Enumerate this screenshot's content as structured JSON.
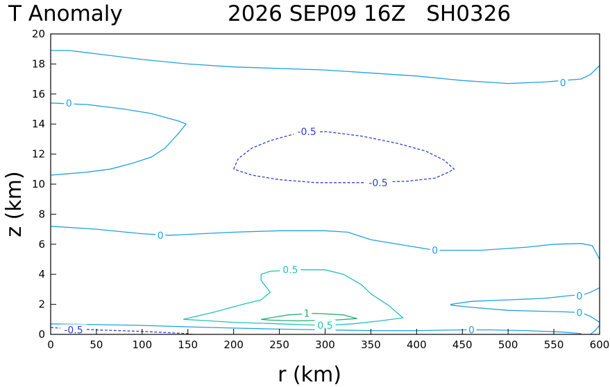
{
  "chart_data": {
    "type": "contour",
    "title_left": "T Anomaly",
    "title_right": "2026 SEP09 16Z   SH0326",
    "xlabel": "r (km)",
    "ylabel": "z (km)",
    "xlim": [
      0,
      600
    ],
    "ylim": [
      0,
      20
    ],
    "x_ticks": [
      "0",
      "50",
      "100",
      "150",
      "200",
      "250",
      "300",
      "350",
      "400",
      "450",
      "500",
      "550",
      "600"
    ],
    "y_ticks": [
      "0",
      "2",
      "4",
      "6",
      "8",
      "10",
      "12",
      "14",
      "16",
      "18",
      "20"
    ],
    "colors": {
      "zero": "#1f9fe6",
      "negative": "#2a3fd6",
      "positive_half": "#22c2b8",
      "positive_one": "#22b070"
    },
    "contours": [
      {
        "level": 0,
        "kind": "zero",
        "dashed": false,
        "points": [
          [
            0,
            18.9
          ],
          [
            20,
            18.9
          ],
          [
            60,
            18.6
          ],
          [
            100,
            18.3
          ],
          [
            150,
            18.0
          ],
          [
            200,
            17.8
          ],
          [
            300,
            17.6
          ],
          [
            400,
            17.2
          ],
          [
            450,
            16.9
          ],
          [
            500,
            16.7
          ],
          [
            540,
            16.8
          ],
          [
            560,
            16.9
          ],
          [
            580,
            17.0
          ],
          [
            590,
            17.3
          ],
          [
            600,
            17.9
          ]
        ]
      },
      {
        "level": 0,
        "kind": "zero",
        "dashed": false,
        "points": [
          [
            0,
            15.4
          ],
          [
            40,
            15.3
          ],
          [
            80,
            15.0
          ],
          [
            110,
            14.7
          ],
          [
            140,
            14.2
          ],
          [
            148,
            14.0
          ],
          [
            140,
            13.4
          ],
          [
            125,
            12.4
          ],
          [
            110,
            11.8
          ],
          [
            90,
            11.4
          ],
          [
            65,
            11.0
          ],
          [
            40,
            10.8
          ],
          [
            20,
            10.7
          ],
          [
            0,
            10.6
          ]
        ]
      },
      {
        "level": 0,
        "kind": "zero",
        "dashed": false,
        "points": [
          [
            0,
            7.2
          ],
          [
            50,
            7.0
          ],
          [
            100,
            6.7
          ],
          [
            130,
            6.6
          ],
          [
            200,
            6.8
          ],
          [
            250,
            6.9
          ],
          [
            300,
            6.9
          ],
          [
            325,
            6.8
          ],
          [
            350,
            6.3
          ],
          [
            400,
            5.8
          ],
          [
            420,
            5.6
          ],
          [
            470,
            5.6
          ],
          [
            520,
            5.8
          ],
          [
            550,
            6.0
          ],
          [
            580,
            6.05
          ],
          [
            592,
            5.9
          ],
          [
            600,
            5.0
          ]
        ]
      },
      {
        "level": 0,
        "kind": "zero",
        "dashed": false,
        "points": [
          [
            437,
            2.0
          ],
          [
            460,
            2.2
          ],
          [
            500,
            2.3
          ],
          [
            540,
            2.4
          ],
          [
            570,
            2.6
          ],
          [
            580,
            2.6
          ],
          [
            590,
            2.8
          ],
          [
            600,
            3.1
          ]
        ]
      },
      {
        "level": 0,
        "kind": "zero",
        "dashed": false,
        "points": [
          [
            437,
            1.95
          ],
          [
            460,
            1.8
          ],
          [
            500,
            1.6
          ],
          [
            530,
            1.55
          ],
          [
            560,
            1.5
          ],
          [
            580,
            1.45
          ],
          [
            590,
            1.2
          ],
          [
            600,
            0.8
          ]
        ]
      },
      {
        "level": 0,
        "kind": "zero",
        "dashed": false,
        "points": [
          [
            0,
            0.7
          ],
          [
            50,
            0.65
          ],
          [
            100,
            0.6
          ],
          [
            150,
            0.5
          ],
          [
            200,
            0.42
          ],
          [
            250,
            0.35
          ],
          [
            300,
            0.3
          ],
          [
            350,
            0.25
          ],
          [
            400,
            0.25
          ],
          [
            450,
            0.3
          ],
          [
            480,
            0.3
          ],
          [
            520,
            0.25
          ],
          [
            560,
            0.15
          ],
          [
            580,
            0.05
          ]
        ]
      },
      {
        "level": 0,
        "kind": "zero",
        "dashed": false,
        "points": [
          [
            590,
            0.0
          ],
          [
            595,
            0.25
          ],
          [
            600,
            0.6
          ]
        ]
      },
      {
        "level": -0.5,
        "kind": "negative",
        "dashed": true,
        "points": [
          [
            200,
            11.0
          ],
          [
            205,
            11.7
          ],
          [
            220,
            12.4
          ],
          [
            240,
            12.9
          ],
          [
            270,
            13.4
          ],
          [
            300,
            13.5
          ],
          [
            340,
            13.2
          ],
          [
            380,
            12.7
          ],
          [
            410,
            12.2
          ],
          [
            430,
            11.6
          ],
          [
            441,
            11.0
          ],
          [
            435,
            10.8
          ],
          [
            420,
            10.4
          ],
          [
            390,
            10.2
          ],
          [
            340,
            10.1
          ],
          [
            290,
            10.1
          ],
          [
            250,
            10.3
          ],
          [
            220,
            10.6
          ],
          [
            200,
            11.0
          ]
        ]
      },
      {
        "level": -0.5,
        "kind": "negative",
        "dashed": true,
        "points": [
          [
            0,
            0.45
          ],
          [
            50,
            0.3
          ],
          [
            100,
            0.2
          ],
          [
            150,
            0.05
          ],
          [
            155,
            0.0
          ]
        ]
      },
      {
        "level": 0.5,
        "kind": "positive_half",
        "dashed": false,
        "points": [
          [
            145,
            1.0
          ],
          [
            180,
            1.5
          ],
          [
            210,
            2.0
          ],
          [
            230,
            2.3
          ],
          [
            240,
            2.8
          ],
          [
            230,
            3.6
          ],
          [
            230,
            4.0
          ],
          [
            240,
            4.2
          ],
          [
            270,
            4.3
          ],
          [
            300,
            4.3
          ],
          [
            320,
            4.0
          ],
          [
            340,
            3.3
          ],
          [
            350,
            2.7
          ],
          [
            360,
            2.3
          ],
          [
            370,
            1.9
          ],
          [
            385,
            1.1
          ],
          [
            360,
            0.9
          ],
          [
            330,
            0.7
          ],
          [
            300,
            0.6
          ],
          [
            250,
            0.7
          ],
          [
            200,
            0.8
          ],
          [
            160,
            0.95
          ],
          [
            145,
            1.0
          ]
        ]
      },
      {
        "level": 1,
        "kind": "positive_one",
        "dashed": false,
        "points": [
          [
            230,
            1.0
          ],
          [
            260,
            1.3
          ],
          [
            290,
            1.4
          ],
          [
            320,
            1.3
          ],
          [
            335,
            1.05
          ],
          [
            310,
            0.95
          ],
          [
            270,
            0.9
          ],
          [
            240,
            0.95
          ],
          [
            230,
            1.0
          ]
        ]
      }
    ],
    "contour_labels": [
      {
        "text": "0",
        "x": 20,
        "y": 15.4,
        "kind": "zero"
      },
      {
        "text": "0",
        "x": 560,
        "y": 16.75,
        "kind": "zero"
      },
      {
        "text": "0",
        "x": 120,
        "y": 6.6,
        "kind": "zero"
      },
      {
        "text": "0",
        "x": 420,
        "y": 5.6,
        "kind": "zero"
      },
      {
        "text": "0",
        "x": 578,
        "y": 2.55,
        "kind": "zero"
      },
      {
        "text": "0",
        "x": 578,
        "y": 1.45,
        "kind": "zero"
      },
      {
        "text": "0",
        "x": 460,
        "y": 0.3,
        "kind": "zero"
      },
      {
        "text": "-0.5",
        "x": 280,
        "y": 13.5,
        "kind": "negative"
      },
      {
        "text": "-0.5",
        "x": 358,
        "y": 10.1,
        "kind": "negative"
      },
      {
        "text": "-0.5",
        "x": 25,
        "y": 0.3,
        "kind": "negative"
      },
      {
        "text": "0.5",
        "x": 262,
        "y": 4.3,
        "kind": "positive_half"
      },
      {
        "text": "0.5",
        "x": 300,
        "y": 0.6,
        "kind": "positive_half"
      },
      {
        "text": "1",
        "x": 280,
        "y": 1.4,
        "kind": "positive_one"
      }
    ]
  }
}
